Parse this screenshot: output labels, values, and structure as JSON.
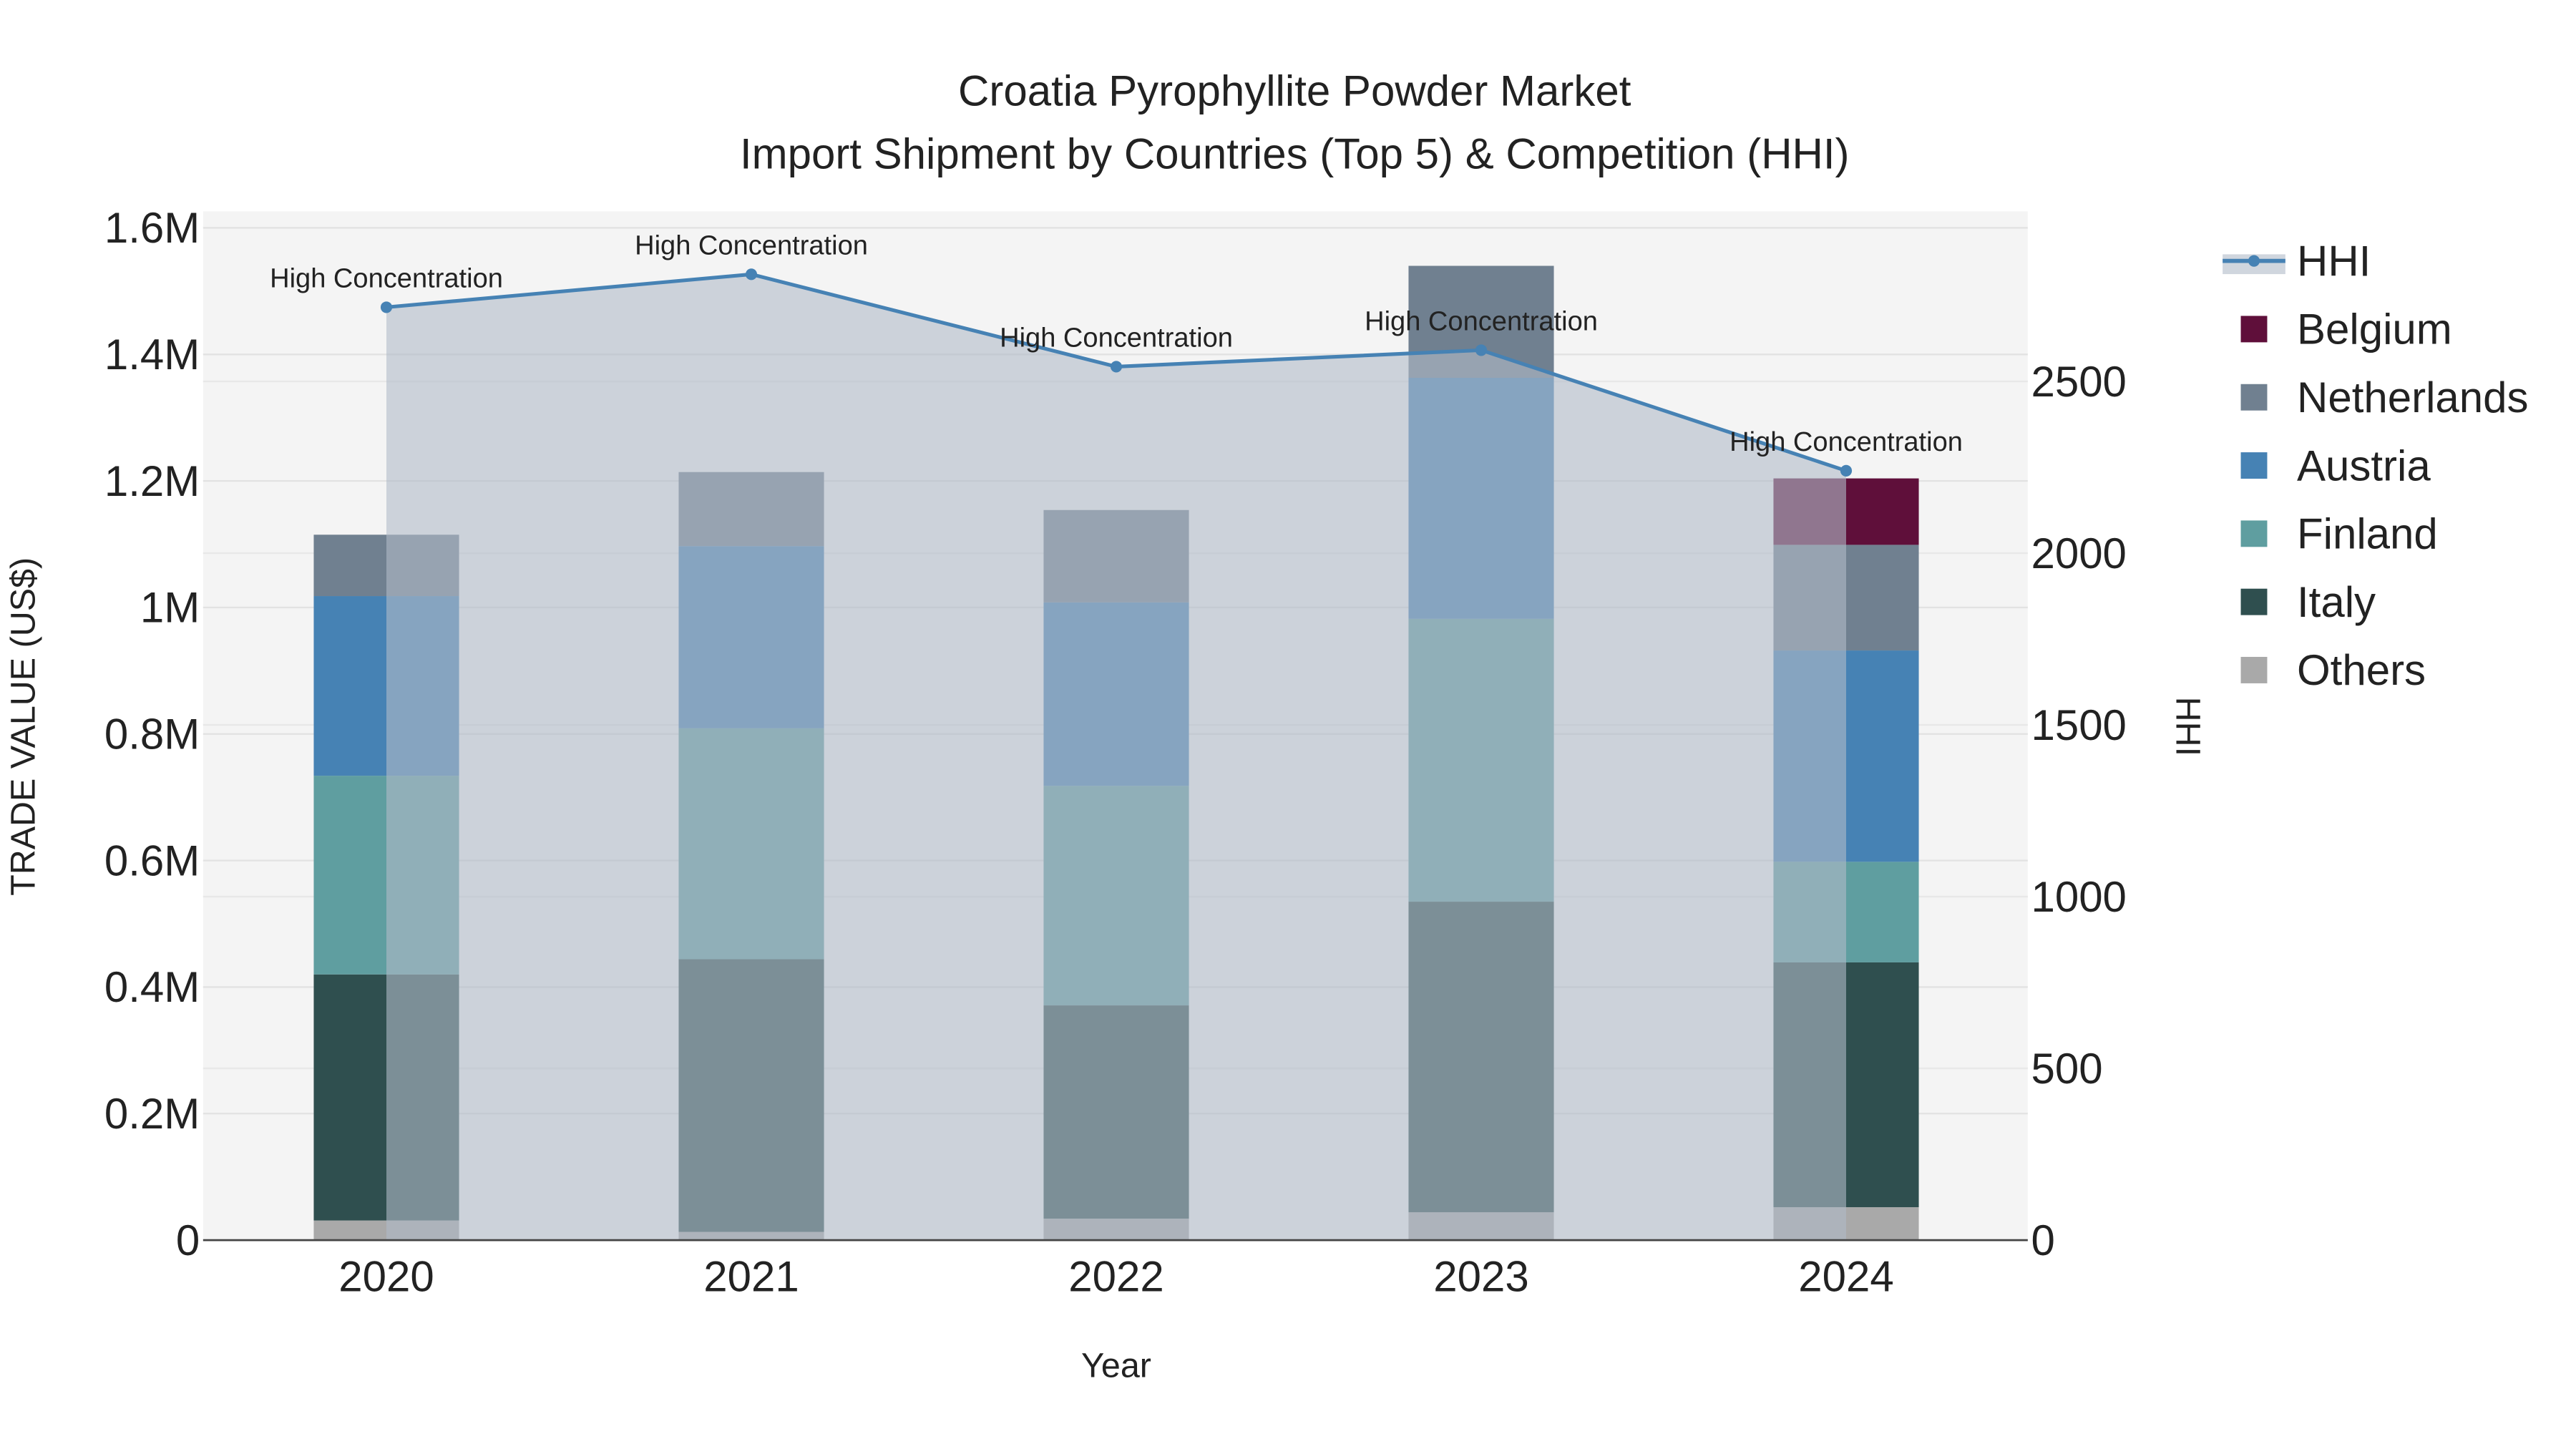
{
  "chart_data": {
    "type": "bar",
    "stacked": true,
    "title": "Croatia Pyrophyllite Powder Market",
    "subtitle": "Import Shipment by Countries (Top 5) & Competition (HHI)",
    "xlabel": "Year",
    "ylabel": "TRADE VALUE (US$)",
    "y2label": "HHI",
    "categories": [
      "2020",
      "2021",
      "2022",
      "2023",
      "2024"
    ],
    "ylim": [
      0,
      1600000
    ],
    "yticks": [
      0,
      200000,
      400000,
      600000,
      800000,
      1000000,
      1200000,
      1400000,
      1600000
    ],
    "ytick_labels": [
      "0",
      "0.2M",
      "0.4M",
      "0.6M",
      "0.8M",
      "1M",
      "1.2M",
      "1.4M",
      "1.6M"
    ],
    "y2lim": [
      0,
      2940
    ],
    "y2ticks": [
      0,
      500,
      1000,
      1500,
      2000,
      2500
    ],
    "y2tick_labels": [
      "0",
      "500",
      "1000",
      "1500",
      "2000",
      "2500"
    ],
    "grid": true,
    "legend_position": "right",
    "series": [
      {
        "name": "Others",
        "color": "#a9a9a9",
        "values": [
          31000,
          13000,
          34000,
          44000,
          52000
        ]
      },
      {
        "name": "Italy",
        "color": "#2f4f4f",
        "values": [
          389000,
          431000,
          337000,
          491000,
          387000
        ]
      },
      {
        "name": "Finland",
        "color": "#5f9ea0",
        "values": [
          314000,
          365000,
          347000,
          447000,
          159000
        ]
      },
      {
        "name": "Austria",
        "color": "#4682b4",
        "values": [
          284000,
          288000,
          290000,
          381000,
          334000
        ]
      },
      {
        "name": "Netherlands",
        "color": "#708090",
        "values": [
          97000,
          117000,
          146000,
          177000,
          167000
        ]
      },
      {
        "name": "Belgium",
        "color": "#5f0f3a",
        "values": [
          0,
          0,
          0,
          0,
          105000
        ]
      }
    ],
    "hhi": {
      "name": "HHI",
      "color": "#4682b4",
      "values": [
        2716,
        2812,
        2543,
        2591,
        2240
      ],
      "annotations": [
        "High Concentration",
        "High Concentration",
        "High Concentration",
        "High Concentration",
        "High Concentration"
      ]
    },
    "legend_order": [
      "HHI",
      "Belgium",
      "Netherlands",
      "Austria",
      "Finland",
      "Italy",
      "Others"
    ]
  }
}
